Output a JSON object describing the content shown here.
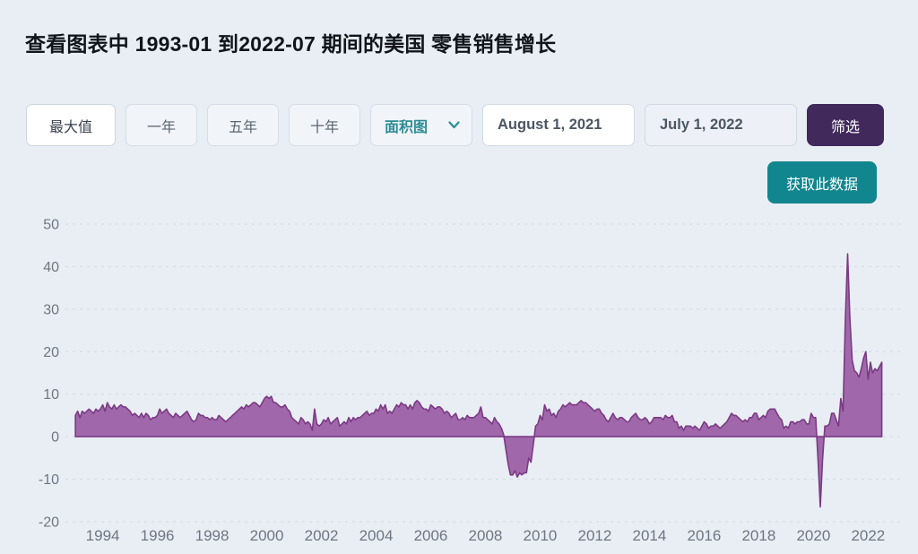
{
  "page": {
    "title": "查看图表中 1993-01 到2022-07 期间的美国 零售销售增长"
  },
  "controls": {
    "range_buttons": [
      {
        "label": "最大值",
        "active": true
      },
      {
        "label": "一年",
        "active": false
      },
      {
        "label": "五年",
        "active": false
      },
      {
        "label": "十年",
        "active": false
      }
    ],
    "chart_type_selected": "面积图",
    "start_date": "August 1, 2021",
    "end_date": "July 1, 2022",
    "filter_label": "筛选",
    "get_data_label": "获取此数据"
  },
  "colors": {
    "page_background": "#e9eef4",
    "accent_teal": "#12868e",
    "accent_dark_purple": "#41295c",
    "area_fill": "#9c60a5",
    "area_stroke": "#7b3a85",
    "grid_line": "#d4d9e1",
    "axis_text": "#6e7680"
  },
  "chart_data": {
    "type": "area",
    "title": "美国 零售销售增长 (YoY %), 1993-01 至 2022-07, 月度",
    "x_start_label": "1993-01",
    "x_end_label": "2022-07",
    "x_tick_years": [
      1994,
      1996,
      1998,
      2000,
      2002,
      2004,
      2006,
      2008,
      2010,
      2012,
      2014,
      2016,
      2018,
      2020,
      2022
    ],
    "y_ticks": [
      50,
      40,
      30,
      20,
      10,
      0,
      -10,
      -20
    ],
    "ylim": [
      -20,
      50
    ],
    "grid": "dashed-horizontal",
    "legend": "none",
    "values_start_year": 1993,
    "values_per_year": 12,
    "values": [
      5.0,
      6.0,
      4.5,
      6.0,
      5.5,
      6.0,
      6.5,
      6.0,
      5.5,
      6.5,
      6.0,
      6.5,
      7.5,
      6.0,
      8.0,
      7.0,
      6.5,
      7.5,
      6.5,
      7.0,
      7.5,
      7.0,
      7.0,
      6.5,
      6.0,
      5.0,
      5.5,
      5.0,
      4.5,
      5.5,
      4.5,
      5.5,
      5.0,
      4.0,
      4.5,
      4.5,
      5.0,
      6.5,
      5.5,
      6.0,
      6.5,
      5.5,
      5.0,
      4.5,
      5.5,
      5.0,
      4.5,
      5.0,
      5.5,
      6.0,
      5.0,
      4.0,
      3.5,
      4.0,
      5.5,
      5.0,
      5.0,
      4.5,
      4.5,
      4.0,
      4.5,
      4.0,
      4.0,
      5.0,
      4.5,
      4.0,
      3.5,
      4.0,
      4.5,
      5.0,
      5.5,
      6.0,
      6.5,
      7.0,
      6.5,
      7.5,
      7.0,
      7.5,
      8.0,
      8.0,
      7.5,
      7.0,
      8.0,
      9.0,
      9.5,
      9.0,
      9.5,
      8.0,
      8.0,
      7.5,
      7.0,
      7.0,
      7.5,
      6.5,
      6.0,
      4.5,
      4.0,
      3.5,
      3.0,
      4.5,
      4.0,
      3.0,
      3.5,
      3.0,
      1.5,
      6.5,
      3.0,
      2.5,
      3.0,
      4.0,
      3.5,
      4.5,
      3.0,
      3.5,
      4.0,
      4.5,
      2.5,
      3.0,
      3.5,
      3.0,
      4.5,
      3.5,
      4.5,
      4.0,
      4.5,
      4.5,
      5.0,
      5.5,
      6.0,
      5.0,
      5.5,
      5.5,
      6.5,
      6.0,
      7.5,
      6.5,
      7.5,
      5.5,
      6.0,
      5.5,
      6.5,
      7.5,
      7.0,
      8.0,
      7.5,
      7.5,
      6.5,
      7.5,
      6.5,
      8.0,
      8.5,
      8.0,
      7.0,
      6.5,
      6.5,
      6.0,
      7.5,
      7.0,
      6.5,
      7.0,
      7.0,
      6.5,
      5.5,
      6.0,
      5.5,
      4.5,
      5.0,
      5.5,
      4.0,
      4.0,
      4.5,
      4.0,
      5.0,
      4.5,
      4.5,
      4.5,
      5.0,
      5.5,
      7.0,
      4.5,
      4.5,
      4.0,
      3.5,
      3.0,
      4.5,
      3.5,
      3.0,
      2.0,
      0.5,
      -3.0,
      -6.5,
      -9.0,
      -9.0,
      -8.0,
      -9.5,
      -8.5,
      -9.0,
      -8.5,
      -8.5,
      -5.0,
      -6.0,
      -2.0,
      2.5,
      3.0,
      5.0,
      4.0,
      7.5,
      6.0,
      6.5,
      5.0,
      5.5,
      4.5,
      6.0,
      6.5,
      7.5,
      7.0,
      7.5,
      8.0,
      7.5,
      7.5,
      7.5,
      8.0,
      8.5,
      8.0,
      8.0,
      7.5,
      7.0,
      6.5,
      6.0,
      6.5,
      6.5,
      5.5,
      5.0,
      4.0,
      3.5,
      4.5,
      5.5,
      4.5,
      4.0,
      4.5,
      4.5,
      4.0,
      3.5,
      3.5,
      4.5,
      5.0,
      5.5,
      4.5,
      4.0,
      4.0,
      4.5,
      4.0,
      3.0,
      3.5,
      4.5,
      4.5,
      4.5,
      4.5,
      4.0,
      5.0,
      4.5,
      4.5,
      5.0,
      3.5,
      3.5,
      2.0,
      2.5,
      1.5,
      2.5,
      2.5,
      2.5,
      2.0,
      2.5,
      2.0,
      1.5,
      2.5,
      3.5,
      3.0,
      2.0,
      2.5,
      2.5,
      3.0,
      2.5,
      2.0,
      2.5,
      3.0,
      3.5,
      4.5,
      5.5,
      5.0,
      5.0,
      4.5,
      4.0,
      3.5,
      4.0,
      3.5,
      4.5,
      4.5,
      5.5,
      5.5,
      4.0,
      4.5,
      5.0,
      4.5,
      6.0,
      6.5,
      6.5,
      6.5,
      5.5,
      4.5,
      4.0,
      2.0,
      2.5,
      2.0,
      3.5,
      3.5,
      3.0,
      3.5,
      3.5,
      4.0,
      4.0,
      3.0,
      3.0,
      5.5,
      4.5,
      4.5,
      -5.5,
      -16.5,
      -5.5,
      2.5,
      2.5,
      3.0,
      5.5,
      5.5,
      4.0,
      2.5,
      9.0,
      6.0,
      28.0,
      43.0,
      28.0,
      18.0,
      15.5,
      15.0,
      14.0,
      16.0,
      18.5,
      20.0,
      13.5,
      17.5,
      15.0,
      16.0,
      15.5,
      16.5,
      17.5
    ]
  }
}
